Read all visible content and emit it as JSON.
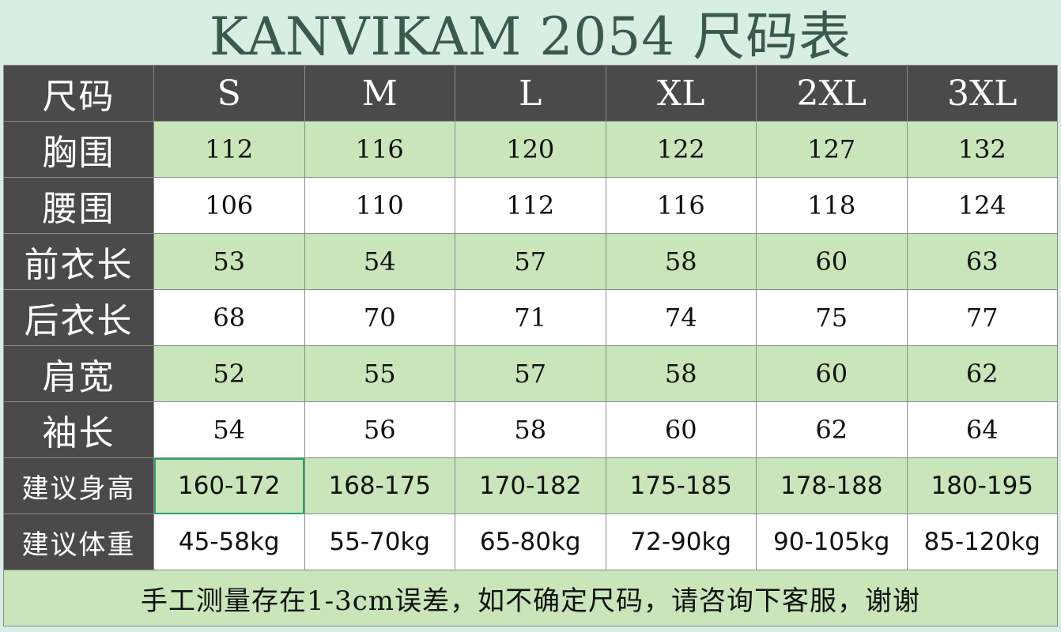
{
  "title": "KANVIKAM 2054 尺码表",
  "header": {
    "label": "尺码",
    "sizes": [
      "S",
      "M",
      "L",
      "XL",
      "2XL",
      "3XL"
    ]
  },
  "rows": [
    {
      "label": "胸围",
      "values": [
        "112",
        "116",
        "120",
        "122",
        "127",
        "132"
      ]
    },
    {
      "label": "腰围",
      "values": [
        "106",
        "110",
        "112",
        "116",
        "118",
        "124"
      ]
    },
    {
      "label": "前衣长",
      "values": [
        "53",
        "54",
        "57",
        "58",
        "60",
        "63"
      ]
    },
    {
      "label": "后衣长",
      "values": [
        "68",
        "70",
        "71",
        "74",
        "75",
        "77"
      ]
    },
    {
      "label": "肩宽",
      "values": [
        "52",
        "55",
        "57",
        "58",
        "60",
        "62"
      ]
    },
    {
      "label": "袖长",
      "values": [
        "54",
        "56",
        "58",
        "60",
        "62",
        "64"
      ]
    },
    {
      "label": "建议身高",
      "values": [
        "160-172",
        "168-175",
        "170-182",
        "175-185",
        "178-188",
        "180-195"
      ]
    },
    {
      "label": "建议体重",
      "values": [
        "45-58kg",
        "55-70kg",
        "65-80kg",
        "72-90kg",
        "90-105kg",
        "85-120kg"
      ]
    }
  ],
  "footer": "手工测量存在1-3cm误差，如不确定尺码，请咨询下客服，谢谢",
  "colors": {
    "header_bg": "#4a4a4a",
    "green_row": "#c8e6b9",
    "white_row": "#ffffff",
    "title_bg": "#d8ede4",
    "title_text": "#3a5a4e",
    "selection": "#2aa368"
  }
}
